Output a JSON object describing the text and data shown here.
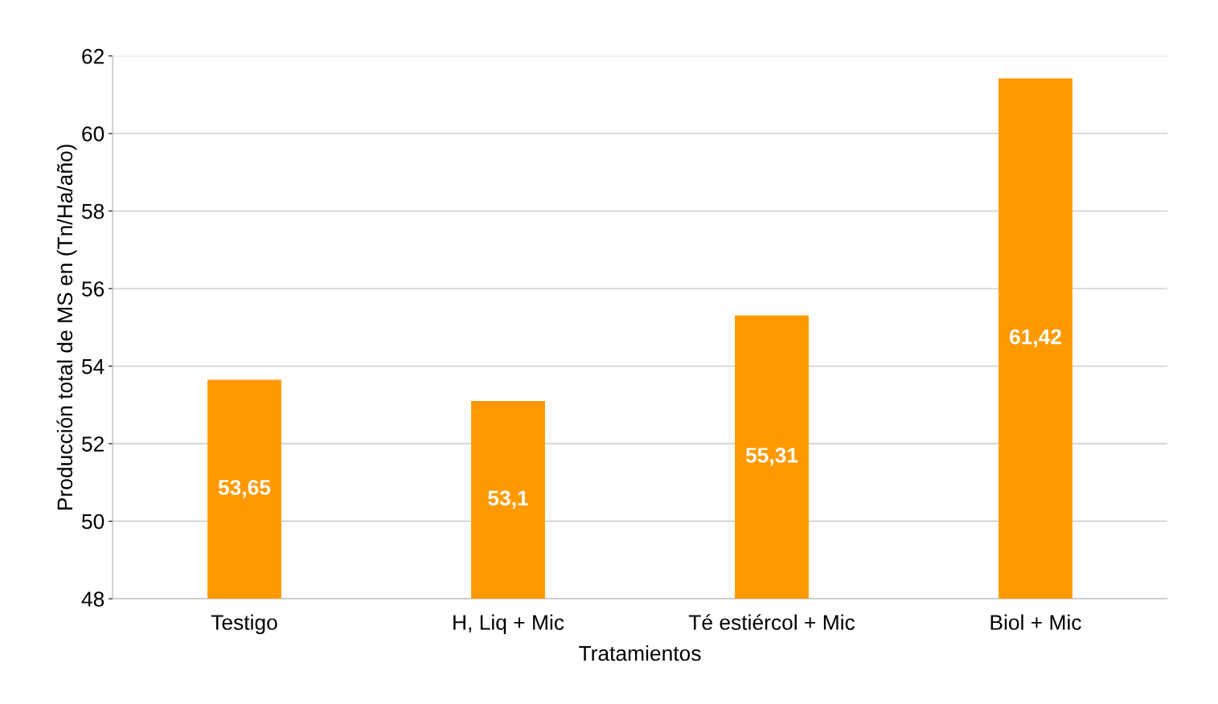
{
  "chart_data": {
    "type": "bar",
    "xlabel": "Tratamientos",
    "ylabel": "Producción total de MS en (Tn/Ha/año)",
    "categories": [
      "Testigo",
      "H, Liq + Mic",
      "Té estiércol + Mic",
      "Biol + Mic"
    ],
    "values": [
      53.65,
      53.1,
      55.31,
      61.42
    ],
    "value_labels": [
      "53,65",
      "53,1",
      "55,31",
      "61,42"
    ],
    "color": "#ff9900",
    "ylim": [
      48,
      62
    ],
    "yticks": [
      48,
      50,
      52,
      54,
      56,
      58,
      60,
      62
    ],
    "grid": "y",
    "legend": false
  }
}
